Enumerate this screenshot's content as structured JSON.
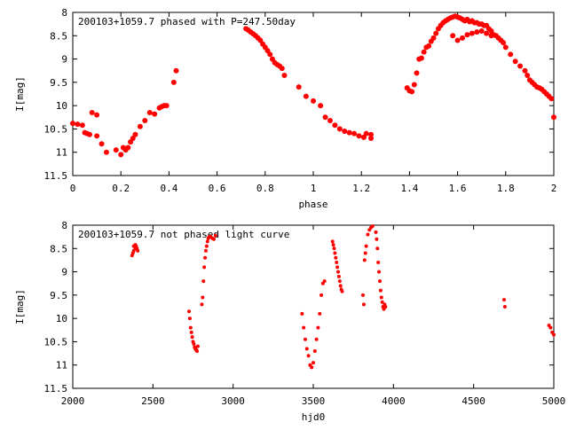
{
  "chart_data": [
    {
      "type": "scatter",
      "title": "200103+1059.7 phased with P=247.50day",
      "xlabel": "phase",
      "ylabel": "I[mag]",
      "xlim": [
        0,
        2
      ],
      "ylim": [
        8,
        11.5
      ],
      "y_inverted": true,
      "grid": false,
      "xticks": [
        "0",
        "0.2",
        "0.4",
        "0.6",
        "0.8",
        "1",
        "1.2",
        "1.4",
        "1.6",
        "1.8",
        "2"
      ],
      "yticks": [
        "8",
        "8.5",
        "9",
        "9.5",
        "10",
        "10.5",
        "11",
        "11.5"
      ],
      "marker_color": "#ff0000",
      "series": [
        {
          "x": [
            0.0,
            0.02,
            0.04,
            0.05,
            0.06,
            0.07,
            0.08,
            0.1,
            0.1,
            0.12,
            0.14,
            0.18,
            0.2,
            0.21,
            0.22,
            0.23,
            0.24,
            0.25,
            0.26,
            0.28,
            0.3,
            0.32,
            0.34,
            0.36,
            0.37,
            0.38,
            0.39,
            0.42,
            0.43,
            0.72,
            0.73,
            0.74,
            0.75,
            0.76,
            0.77,
            0.78,
            0.79,
            0.8,
            0.81,
            0.82,
            0.83,
            0.84,
            0.85,
            0.86,
            0.87,
            0.88,
            0.94,
            0.97,
            1.0,
            1.03,
            1.05,
            1.07,
            1.09,
            1.11,
            1.13,
            1.15,
            1.17,
            1.19,
            1.21,
            1.22,
            1.24,
            1.24,
            1.39,
            1.4,
            1.41,
            1.42,
            1.43,
            1.44,
            1.45,
            1.46,
            1.47,
            1.48,
            1.49,
            1.5,
            1.51,
            1.52,
            1.53,
            1.54,
            1.55,
            1.56,
            1.57,
            1.58,
            1.59,
            1.6,
            1.61,
            1.62,
            1.63,
            1.64,
            1.65,
            1.66,
            1.67,
            1.68,
            1.69,
            1.7,
            1.71,
            1.72,
            1.73,
            1.74,
            1.75,
            1.76,
            1.77,
            1.78,
            1.79,
            1.8,
            1.82,
            1.84,
            1.86,
            1.88,
            1.89,
            1.9,
            1.91,
            1.92,
            1.93,
            1.94,
            1.95,
            1.96,
            1.97,
            1.98,
            1.99,
            2.0,
            1.6,
            1.62,
            1.64,
            1.66,
            1.68,
            1.7,
            1.72,
            1.74,
            1.58
          ],
          "y": [
            10.38,
            10.4,
            10.42,
            10.58,
            10.6,
            10.62,
            10.15,
            10.2,
            10.65,
            10.82,
            11.0,
            10.95,
            11.05,
            10.9,
            10.95,
            10.9,
            10.78,
            10.7,
            10.62,
            10.45,
            10.32,
            10.15,
            10.18,
            10.05,
            10.02,
            10.0,
            10.0,
            9.5,
            9.25,
            8.35,
            8.38,
            8.42,
            8.46,
            8.5,
            8.55,
            8.6,
            8.68,
            8.75,
            8.82,
            8.9,
            9.0,
            9.08,
            9.12,
            9.15,
            9.2,
            9.35,
            9.6,
            9.8,
            9.9,
            10.0,
            10.25,
            10.32,
            10.42,
            10.5,
            10.55,
            10.58,
            10.6,
            10.65,
            10.68,
            10.6,
            10.62,
            10.7,
            9.62,
            9.68,
            9.7,
            9.55,
            9.3,
            9.0,
            8.98,
            8.85,
            8.75,
            8.72,
            8.62,
            8.55,
            8.45,
            8.35,
            8.28,
            8.22,
            8.18,
            8.15,
            8.12,
            8.1,
            8.08,
            8.1,
            8.12,
            8.15,
            8.18,
            8.15,
            8.2,
            8.18,
            8.22,
            8.22,
            8.25,
            8.25,
            8.28,
            8.28,
            8.35,
            8.4,
            8.48,
            8.5,
            8.55,
            8.6,
            8.65,
            8.75,
            8.9,
            9.05,
            9.15,
            9.25,
            9.35,
            9.45,
            9.5,
            9.55,
            9.6,
            9.62,
            9.65,
            9.7,
            9.75,
            9.8,
            9.85,
            10.25,
            8.6,
            8.55,
            8.48,
            8.45,
            8.42,
            8.4,
            8.45,
            8.5,
            8.5
          ]
        }
      ]
    },
    {
      "type": "scatter",
      "title": "200103+1059.7 not phased light curve",
      "xlabel": "hjd0",
      "ylabel": "I[mag]",
      "xlim": [
        2000,
        5000
      ],
      "ylim": [
        8,
        11.5
      ],
      "y_inverted": true,
      "grid": false,
      "xticks": [
        "2000",
        "2500",
        "3000",
        "3500",
        "4000",
        "4500",
        "5000"
      ],
      "yticks": [
        "8",
        "8.5",
        "9",
        "9.5",
        "10",
        "10.5",
        "11",
        "11.5"
      ],
      "marker_color": "#ff0000",
      "series": [
        {
          "x": [
            2370,
            2375,
            2380,
            2385,
            2390,
            2395,
            2400,
            2405,
            2390,
            2380,
            2725,
            2730,
            2735,
            2740,
            2745,
            2750,
            2755,
            2760,
            2765,
            2770,
            2775,
            2780,
            2805,
            2810,
            2815,
            2820,
            2825,
            2830,
            2835,
            2840,
            2845,
            2850,
            2860,
            2870,
            2880,
            2890,
            3430,
            3440,
            3450,
            3460,
            3470,
            3480,
            3490,
            3500,
            3510,
            3520,
            3530,
            3540,
            3550,
            3560,
            3570,
            3620,
            3625,
            3630,
            3635,
            3640,
            3645,
            3650,
            3655,
            3660,
            3665,
            3670,
            3675,
            3680,
            3810,
            3815,
            3820,
            3825,
            3830,
            3840,
            3850,
            3860,
            3870,
            3890,
            3895,
            3900,
            3905,
            3910,
            3915,
            3920,
            3925,
            3930,
            3935,
            3940,
            3945,
            3950,
            4690,
            4695,
            4970,
            4980,
            4990,
            5000
          ],
          "y": [
            8.65,
            8.6,
            8.55,
            8.45,
            8.42,
            8.45,
            8.5,
            8.55,
            8.5,
            8.45,
            9.85,
            10.0,
            10.2,
            10.3,
            10.4,
            10.5,
            10.55,
            10.62,
            10.65,
            10.68,
            10.7,
            10.6,
            9.7,
            9.55,
            9.2,
            8.9,
            8.7,
            8.55,
            8.45,
            8.35,
            8.28,
            8.25,
            8.25,
            8.28,
            8.3,
            8.22,
            9.9,
            10.2,
            10.45,
            10.65,
            10.8,
            11.0,
            11.05,
            10.95,
            10.7,
            10.45,
            10.2,
            9.9,
            9.5,
            9.25,
            9.2,
            8.35,
            8.42,
            8.5,
            8.6,
            8.7,
            8.8,
            8.9,
            9.0,
            9.1,
            9.2,
            9.3,
            9.38,
            9.42,
            9.5,
            9.7,
            8.75,
            8.6,
            8.45,
            8.2,
            8.1,
            8.05,
            8.02,
            8.15,
            8.3,
            8.5,
            8.8,
            9.0,
            9.2,
            9.4,
            9.55,
            9.65,
            9.75,
            9.8,
            9.7,
            9.75,
            9.6,
            9.75,
            10.15,
            10.2,
            10.3,
            10.35
          ]
        }
      ]
    }
  ]
}
